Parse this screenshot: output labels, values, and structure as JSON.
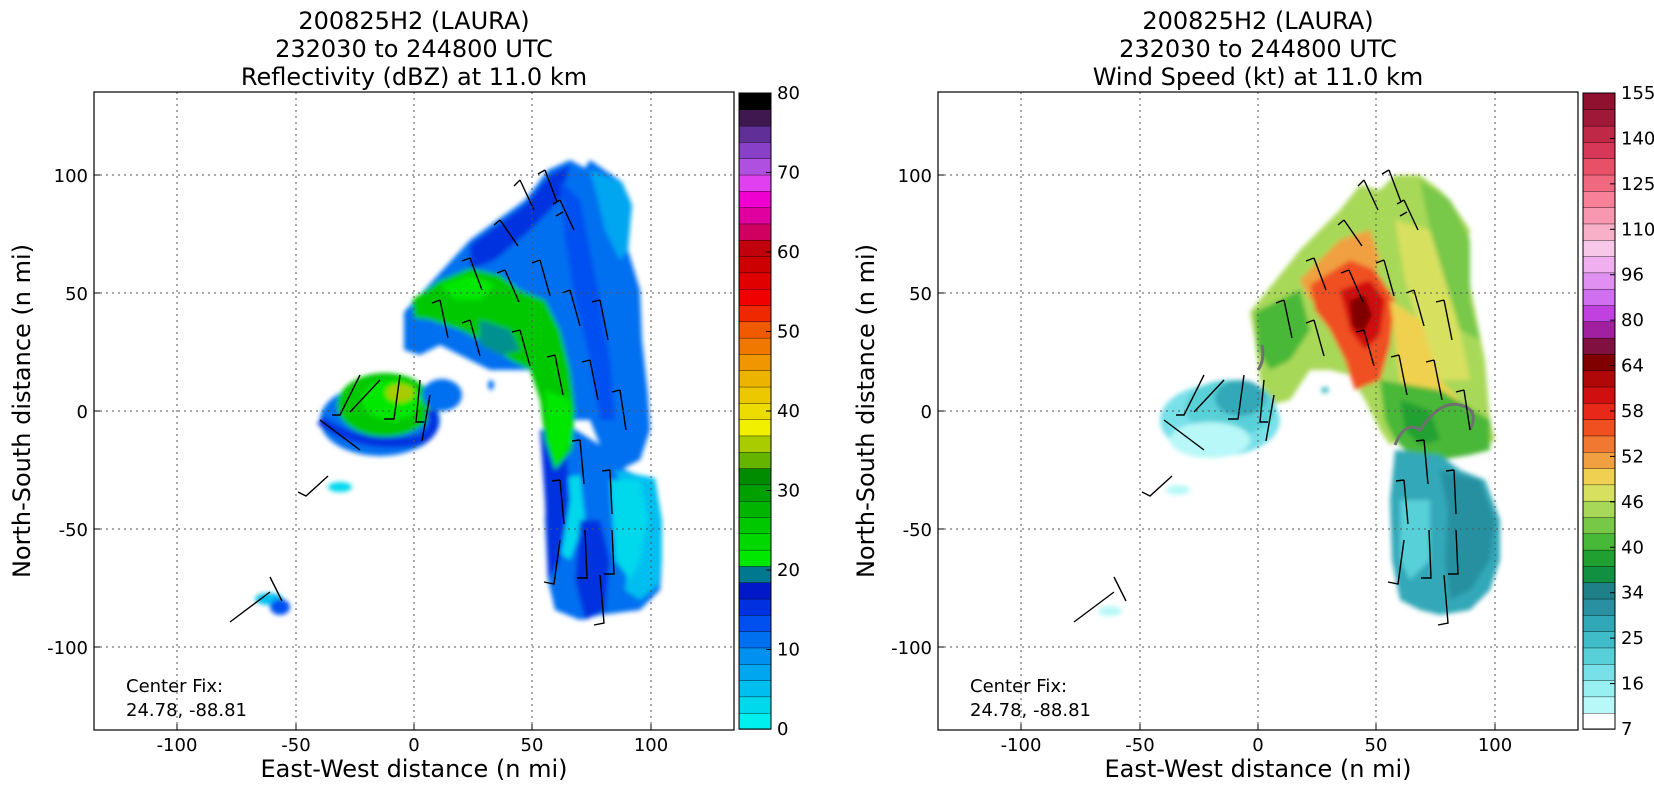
{
  "chart_data": [
    {
      "type": "heatmap",
      "title_lines": [
        "200825H2 (LAURA)",
        "232030 to 244800 UTC",
        "Reflectivity (dBZ) at 11.0 km"
      ],
      "xlabel": "East-West distance (n mi)",
      "ylabel": "North-South distance (n mi)",
      "xlim": [
        -135,
        135
      ],
      "ylim": [
        -135,
        135
      ],
      "xticks": [
        -100,
        -50,
        0,
        50,
        100
      ],
      "yticks": [
        -100,
        -50,
        0,
        50,
        100
      ],
      "grid": true,
      "annotation_lines": [
        "Center Fix:",
        "24.78, -88.81"
      ],
      "colorbar": {
        "label": "dBZ",
        "range": [
          0,
          80
        ],
        "tick_labels": [
          "0",
          "10",
          "20",
          "30",
          "40",
          "50",
          "60",
          "70",
          "80"
        ],
        "colors": [
          "#00f0f0",
          "#00d8ec",
          "#00bff0",
          "#00a6f0",
          "#0090f0",
          "#0070f0",
          "#0050f0",
          "#0030e0",
          "#0018c8",
          "#007890",
          "#00e800",
          "#00d800",
          "#00c800",
          "#00b400",
          "#00a000",
          "#008c00",
          "#64b400",
          "#a8cc00",
          "#f0f000",
          "#ecdc00",
          "#ecc800",
          "#ecb400",
          "#f09600",
          "#f07800",
          "#f05a00",
          "#f02800",
          "#f00000",
          "#e00000",
          "#cc0000",
          "#c0000c",
          "#d00060",
          "#e000a0",
          "#f000d0",
          "#e040f0",
          "#b050e0",
          "#8840c8",
          "#603098",
          "#401850",
          "#000000"
        ]
      },
      "values_described": "Reflectivity mostly 8–22 dBZ (blue to green) in an inverted-L shaped region with a spiral band near the center"
    },
    {
      "type": "heatmap",
      "title_lines": [
        "200825H2 (LAURA)",
        "232030 to 244800 UTC",
        "Wind Speed (kt) at 11.0 km"
      ],
      "xlabel": "East-West distance (n mi)",
      "ylabel": "North-South distance (n mi)",
      "xlim": [
        -135,
        135
      ],
      "ylim": [
        -135,
        135
      ],
      "xticks": [
        -100,
        -50,
        0,
        50,
        100
      ],
      "yticks": [
        -100,
        -50,
        0,
        50,
        100
      ],
      "grid": true,
      "annotation_lines": [
        "Center Fix:",
        "24.78, -88.81"
      ],
      "colorbar": {
        "label": "kt",
        "tick_labels": [
          "7",
          "16",
          "25",
          "34",
          "40",
          "46",
          "52",
          "58",
          "64",
          "80",
          "96",
          "110",
          "125",
          "140",
          "155"
        ],
        "colors": [
          "#ffffff",
          "#b8f8f8",
          "#98f0f0",
          "#78e0e8",
          "#58d0d8",
          "#40bcc8",
          "#30a8b8",
          "#2890a0",
          "#208088",
          "#109040",
          "#20a030",
          "#48b838",
          "#78c848",
          "#a8d858",
          "#d8e060",
          "#f0d050",
          "#f0a040",
          "#f07830",
          "#f05020",
          "#e82818",
          "#d01010",
          "#b00808",
          "#800000",
          "#801040",
          "#a020a0",
          "#c040e0",
          "#d070f0",
          "#e090f0",
          "#f0b0f0",
          "#f8c8e8",
          "#f8b0c8",
          "#f898b0",
          "#f88098",
          "#f06880",
          "#e85068",
          "#d83858",
          "#c02848",
          "#a01838",
          "#901030"
        ]
      },
      "values_described": "Wind speeds up to ~58–64 kt (dark red) northeast of center; teal 20–30 kt in the southern band"
    }
  ]
}
